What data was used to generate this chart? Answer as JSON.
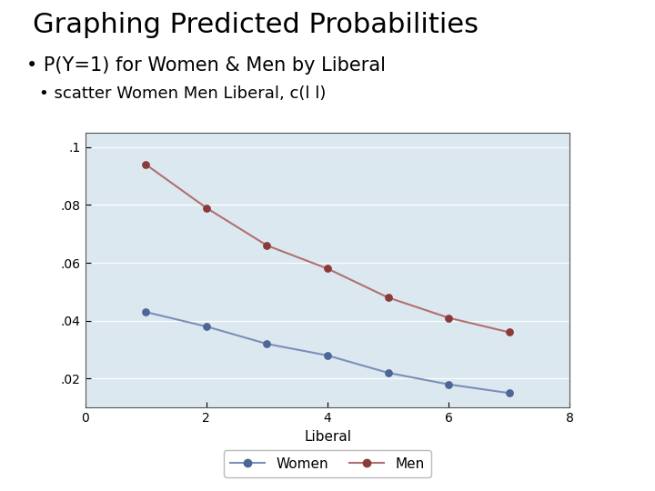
{
  "title": "Graphing Predicted Probabilities",
  "subtitle": "• P(Y=1) for Women & Men by Liberal",
  "sub_subtitle": "• scatter Women Men Liberal, c(l l)",
  "xlabel": "Liberal",
  "ylabel": "",
  "xlim": [
    0,
    8
  ],
  "ylim": [
    0.01,
    0.105
  ],
  "yticks": [
    0.02,
    0.04,
    0.06,
    0.08,
    0.1
  ],
  "ytick_labels": [
    ".02",
    ".04",
    ".06",
    ".08",
    ".1"
  ],
  "xticks": [
    0,
    2,
    4,
    6,
    8
  ],
  "women_x": [
    1,
    2,
    3,
    4,
    5,
    6,
    7
  ],
  "women_y": [
    0.043,
    0.038,
    0.032,
    0.028,
    0.022,
    0.018,
    0.015
  ],
  "men_x": [
    1,
    2,
    3,
    4,
    5,
    6,
    7
  ],
  "men_y": [
    0.094,
    0.079,
    0.066,
    0.058,
    0.048,
    0.041,
    0.036
  ],
  "women_color": "#4c6696",
  "men_color": "#8b3a3a",
  "women_line_color": "#7b8fb8",
  "men_line_color": "#b07070",
  "plot_bg": "#dce8f0",
  "title_fontsize": 22,
  "subtitle_fontsize": 15,
  "sub_subtitle_fontsize": 13,
  "axis_fontsize": 11,
  "tick_fontsize": 10,
  "legend_fontsize": 11
}
